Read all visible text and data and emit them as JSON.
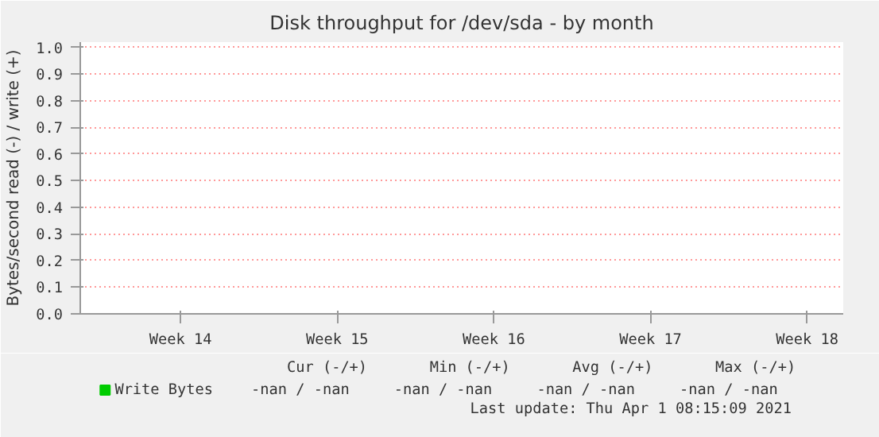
{
  "chart_data": {
    "type": "line",
    "title": "Disk throughput for /dev/sda - by month",
    "ylabel": "Bytes/second read (-) / write (+)",
    "categories": [
      "Week 14",
      "Week 15",
      "Week 16",
      "Week 17",
      "Week 18"
    ],
    "series": [
      {
        "name": "Write Bytes",
        "color": "#00cc00",
        "values": [
          null,
          null,
          null,
          null,
          null
        ]
      }
    ],
    "ylim": [
      0,
      1.02
    ],
    "yticks": [
      {
        "value": 0,
        "label": "0.0"
      },
      {
        "value": 0.1,
        "label": "0.1"
      },
      {
        "value": 0.2,
        "label": "0.2"
      },
      {
        "value": 0.3,
        "label": "0.3"
      },
      {
        "value": 0.4,
        "label": "0.4"
      },
      {
        "value": 0.5,
        "label": "0.5"
      },
      {
        "value": 0.6,
        "label": "0.6"
      },
      {
        "value": 0.7,
        "label": "0.7"
      },
      {
        "value": 0.8,
        "label": "0.8"
      },
      {
        "value": 0.9,
        "label": "0.9"
      },
      {
        "value": 1.0,
        "label": "1.0"
      }
    ],
    "grid": "y",
    "legend": "bottom left",
    "annotations": [
      "Cur (-/+)",
      "Min (-/+)",
      "Avg (-/+)",
      "Max (-/+)",
      "-nan /   -nan",
      "-nan /   -nan",
      "-nan /   -nan",
      "-nan /   -nan",
      "Last update: Thu Apr  1 08:15:09 2021"
    ]
  }
}
